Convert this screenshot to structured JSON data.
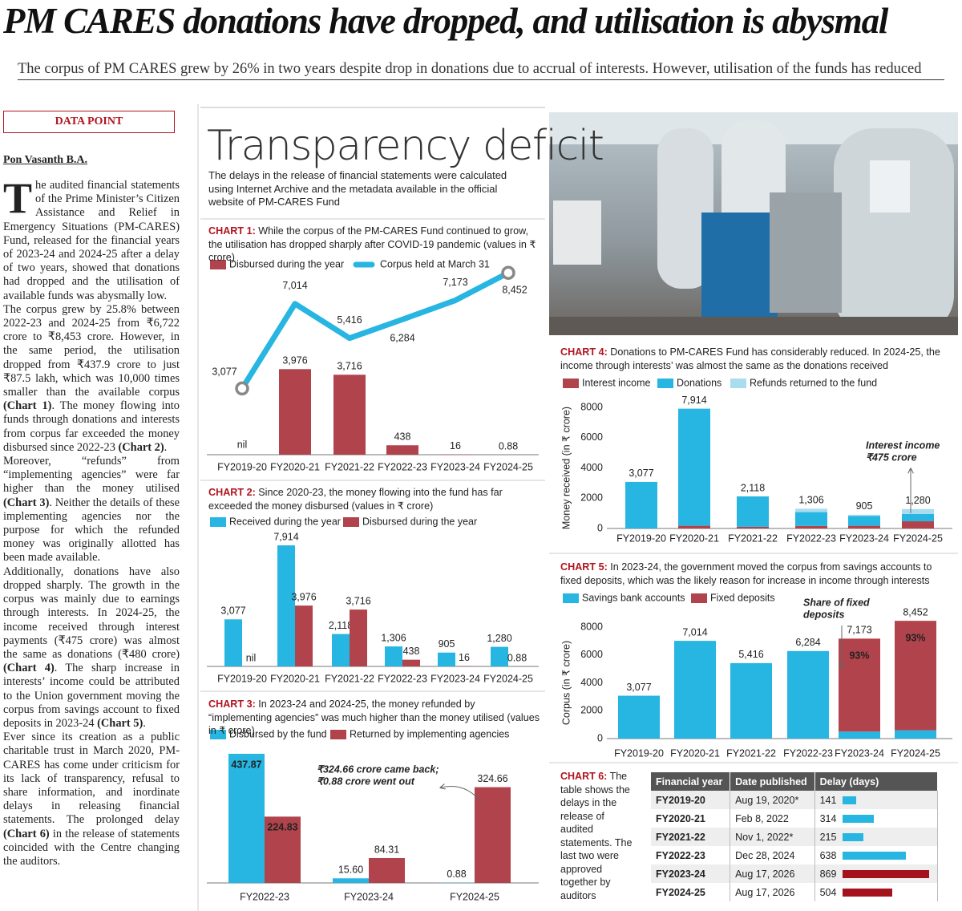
{
  "header": {
    "title": "PM CARES donations have dropped, and utilisation is abysmal",
    "subtitle": "The corpus of PM CARES grew by 26% in two years despite drop in donations due to accrual of interests. However, utilisation of the funds has reduced"
  },
  "article": {
    "kicker": "DATA POINT",
    "byline": "Pon Vasanth B.A.",
    "paragraphs": [
      [
        "The audited financial statements of the Prime Minister’s Citizen Assistance and Relief in Emergency Situations (PM-CARES) Fund, released for the financial years of 2023-24 and 2024-25 after a delay of two years, showed that donations had dropped and the utilisation of available funds was abysmally low."
      ],
      [
        "The corpus grew by 25.8% between 2022-23 and 2024-25 from ₹6,722 crore to ₹8,453 crore. However, in the same period, the utilisation dropped from ₹437.9 crore to just ₹87.5 lakh, which was 10,000 times smaller than the available corpus ",
        {
          "bold": "(Chart 1)"
        },
        ". The money flowing into funds through donations and interests from corpus far exceeded the money disbursed since 2022-23 ",
        {
          "bold": "(Chart 2)"
        },
        "."
      ],
      [
        "Moreover, “refunds” from “implementing agencies” were far higher than the money utilised ",
        {
          "bold": "(Chart 3)"
        },
        ". Neither the details of these implementing agencies nor the purpose for which the refunded money was originally allotted has been made available."
      ],
      [
        "Additionally, donations have also dropped sharply. The growth in the corpus was mainly due to earnings through interests. In 2024-25, the income received through interest payments (₹475 crore) was almost the same as donations (₹480 crore) ",
        {
          "bold": "(Chart 4)"
        },
        ". The sharp increase in interests’ income could be attributed to the Union government moving the corpus from savings account to fixed deposits in 2023-24 ",
        {
          "bold": "(Chart 5)"
        },
        "."
      ],
      [
        "Ever since its creation as a public charitable trust in March 2020, PM-CARES has come under criticism for its lack of transparency, refusal to share information, and inordinate delays in releasing financial statements. The prolonged delay ",
        {
          "bold": "(Chart 6)"
        },
        " in the release of statements coincided with the Centre changing the auditors."
      ]
    ]
  },
  "section": {
    "title": "Transparency deficit",
    "description": "The delays in the release of financial statements were calculated using Internet Archive and the metadata available in the official website of PM-CARES Fund"
  },
  "chart_data": [
    {
      "type": "bar-line",
      "label": "CHART 1:",
      "title": "While the corpus of the PM-CARES Fund continued to grow, the utilisation has dropped sharply after COVID-19 pandemic (values in ₹ crore)",
      "categories": [
        "FY2019-20",
        "FY2020-21",
        "FY2021-22",
        "FY2022-23",
        "FY2023-24",
        "FY2024-25"
      ],
      "series": [
        {
          "name": "Disbursed during the year",
          "type": "bar",
          "color": "#b0434b",
          "values": [
            0,
            3976,
            3716,
            438,
            16,
            0.88
          ],
          "value_labels": [
            "nil",
            "3,976",
            "3,716",
            "438",
            "16",
            "0.88"
          ]
        },
        {
          "name": "Corpus held at March 31",
          "type": "line",
          "color": "#27b5e2",
          "values": [
            3077,
            7014,
            5416,
            6284,
            7173,
            8452
          ],
          "value_labels": [
            "3,077",
            "7,014",
            "5,416",
            "6,284",
            "7,173",
            "8,452"
          ]
        }
      ],
      "ylim": [
        0,
        9000
      ]
    },
    {
      "type": "grouped-bar",
      "label": "CHART 2:",
      "title": "Since 2020-23, the money flowing into the fund has far exceeded the money disbursed (values in ₹ crore)",
      "categories": [
        "FY2019-20",
        "FY2020-21",
        "FY2021-22",
        "FY2022-23",
        "FY2023-24",
        "FY2024-25"
      ],
      "series": [
        {
          "name": "Received during the year",
          "color": "#27b5e2",
          "values": [
            3077,
            7914,
            2118,
            1306,
            905,
            1280
          ],
          "value_labels": [
            "3,077",
            "7,914",
            "2,118",
            "1,306",
            "905",
            "1,280"
          ]
        },
        {
          "name": "Disbursed during the year",
          "color": "#b0434b",
          "values": [
            0,
            3976,
            3716,
            438,
            16,
            0.88
          ],
          "value_labels": [
            "nil",
            "3,976",
            "3,716",
            "438",
            "16",
            "0.88"
          ]
        }
      ],
      "ylim": [
        0,
        8000
      ]
    },
    {
      "type": "grouped-bar",
      "label": "CHART 3:",
      "title": "In 2023-24 and 2024-25, the money refunded by “implementing agencies” was much higher than the money utilised (values in ₹ crore)",
      "categories": [
        "FY2022-23",
        "FY2023-24",
        "FY2024-25"
      ],
      "series": [
        {
          "name": "Disbursed by the fund",
          "color": "#27b5e2",
          "values": [
            437.87,
            15.6,
            0.88
          ],
          "value_labels": [
            "437.87",
            "15.60",
            "0.88"
          ]
        },
        {
          "name": "Returned by implementing agencies",
          "color": "#b0434b",
          "values": [
            224.83,
            84.31,
            324.66
          ],
          "value_labels": [
            "224.83",
            "84.31",
            "324.66"
          ]
        }
      ],
      "annotation": [
        "₹324.66 crore came back;",
        "₹0.88 crore went out"
      ],
      "ylim": [
        0,
        450
      ]
    },
    {
      "type": "stacked-bar",
      "label": "CHART 4:",
      "title": "Donations to PM-CARES Fund has considerably reduced. In 2024-25, the income through interests’ was almost the same as the donations received",
      "categories": [
        "FY2019-20",
        "FY2020-21",
        "FY2021-22",
        "FY2022-23",
        "FY2023-24",
        "FY2024-25"
      ],
      "series": [
        {
          "name": "Interest income",
          "color": "#b0434b",
          "values": [
            0,
            180,
            110,
            170,
            180,
            475
          ]
        },
        {
          "name": "Donations",
          "color": "#27b5e2",
          "values": [
            3077,
            7734,
            2008,
            911,
            641,
            480
          ]
        },
        {
          "name": "Refunds returned to the fund",
          "color": "#a9dcef",
          "values": [
            0,
            0,
            0,
            224.83,
            84.31,
            324.66
          ]
        }
      ],
      "totals": [
        3077,
        7914,
        2118,
        1306,
        905,
        1280
      ],
      "total_labels": [
        "3,077",
        "7,914",
        "2,118",
        "1,306",
        "905",
        "1,280"
      ],
      "ylabel": "Money received (in ₹ crore)",
      "ylim": [
        0,
        8000
      ],
      "yticks": [
        0,
        2000,
        4000,
        6000,
        8000
      ],
      "annotation": [
        "Interest income",
        "₹475 crore"
      ]
    },
    {
      "type": "stacked-bar",
      "label": "CHART 5:",
      "title": "In 2023-24, the government moved the corpus from savings accounts to fixed deposits, which was the likely reason for increase in income through interests",
      "categories": [
        "FY2019-20",
        "FY2020-21",
        "FY2021-22",
        "FY2022-23",
        "FY2023-24",
        "FY2024-25"
      ],
      "series": [
        {
          "name": "Savings bank accounts",
          "color": "#27b5e2",
          "values": [
            3077,
            7014,
            5416,
            6284,
            502,
            592
          ]
        },
        {
          "name": "Fixed deposits",
          "color": "#b0434b",
          "values": [
            0,
            0,
            0,
            0,
            6671,
            7860
          ]
        }
      ],
      "totals": [
        3077,
        7014,
        5416,
        6284,
        7173,
        8452
      ],
      "total_labels": [
        "3,077",
        "7,014",
        "5,416",
        "6,284",
        "7,173",
        "8,452"
      ],
      "shares": [
        null,
        null,
        null,
        null,
        93,
        93
      ],
      "share_labels": [
        null,
        null,
        null,
        null,
        "93%",
        "93%"
      ],
      "ylabel": "Corpus (in ₹ crore)",
      "ylim": [
        0,
        8000
      ],
      "yticks": [
        0,
        2000,
        4000,
        6000,
        8000
      ],
      "annotation": [
        "Share of fixed",
        "deposits"
      ]
    }
  ],
  "table": {
    "label": "CHART 6:",
    "caption": "The table shows the delays in the release of audited statements. The last two were approved together by auditors",
    "columns": [
      "Financial year",
      "Date published",
      "Delay (days)"
    ],
    "rows": [
      [
        "FY2019-20",
        "Aug 19, 2020*",
        141
      ],
      [
        "FY2020-21",
        "Feb 8, 2022",
        314
      ],
      [
        "FY2021-22",
        "Nov 1, 2022*",
        215
      ],
      [
        "FY2022-23",
        "Dec 28, 2024",
        638
      ],
      [
        "FY2023-24",
        "Aug 17, 2026",
        869
      ],
      [
        "FY2024-25",
        "Aug 17, 2026",
        504
      ]
    ],
    "bar_colors": [
      "#27b5e2",
      "#27b5e2",
      "#27b5e2",
      "#27b5e2",
      "#a3121d",
      "#a3121d"
    ],
    "xlim": [
      0,
      900
    ]
  }
}
